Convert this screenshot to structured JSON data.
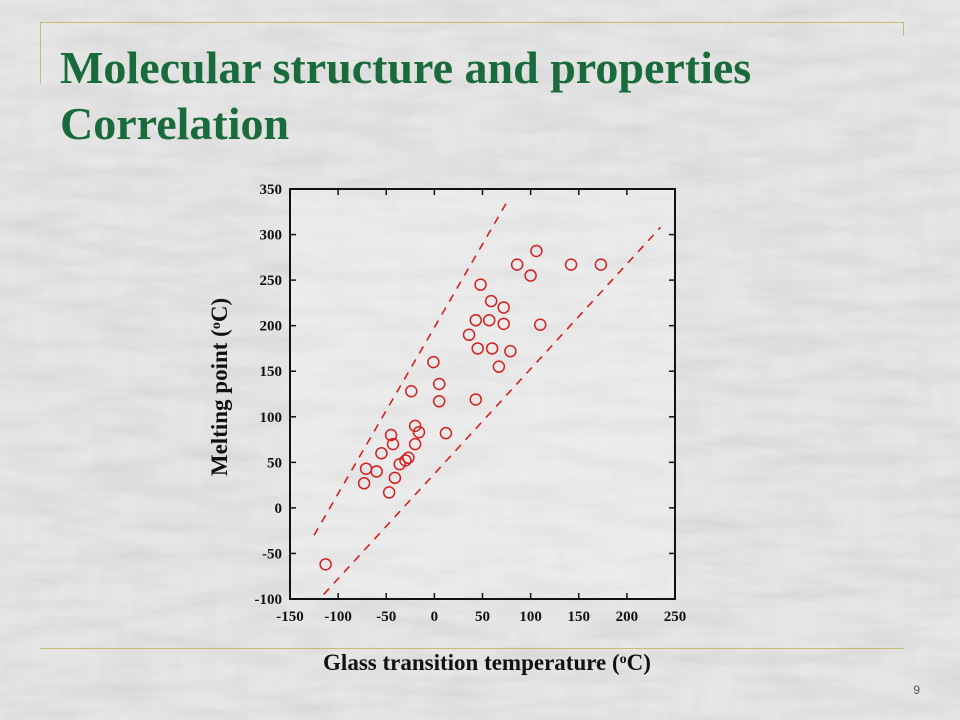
{
  "slide": {
    "title": "Molecular structure and properties Correlation",
    "page_number": "9",
    "colors": {
      "title": "#1a6b3c",
      "frame": "#c8bb7a",
      "markers": "#d42020",
      "guide_lines": "#d42020"
    }
  },
  "chart_data": {
    "type": "scatter",
    "title": "",
    "xlabel": "Glass transition temperature (°C)",
    "ylabel": "Melting point (°C)",
    "xlim": [
      -150,
      250
    ],
    "ylim": [
      -100,
      350
    ],
    "x_ticks": [
      -150,
      -100,
      -50,
      0,
      50,
      100,
      150,
      200,
      250
    ],
    "y_ticks": [
      -100,
      -50,
      0,
      50,
      100,
      150,
      200,
      250,
      300,
      350
    ],
    "grid": false,
    "legend": "none",
    "marker": "open-circle",
    "series": [
      {
        "points": [
          [
            -113,
            -62
          ],
          [
            -73,
            27
          ],
          [
            -71,
            43
          ],
          [
            -60,
            40
          ],
          [
            -55,
            60
          ],
          [
            -47,
            17
          ],
          [
            -45,
            80
          ],
          [
            -43,
            70
          ],
          [
            -41,
            33
          ],
          [
            -36,
            48
          ],
          [
            -30,
            52
          ],
          [
            -27,
            55
          ],
          [
            -24,
            128
          ],
          [
            -20,
            90
          ],
          [
            -20,
            70
          ],
          [
            -16,
            83
          ],
          [
            -1,
            160
          ],
          [
            5,
            136
          ],
          [
            5,
            117
          ],
          [
            12,
            82
          ],
          [
            36,
            190
          ],
          [
            43,
            206
          ],
          [
            43,
            119
          ],
          [
            45,
            175
          ],
          [
            48,
            245
          ],
          [
            57,
            206
          ],
          [
            59,
            227
          ],
          [
            60,
            175
          ],
          [
            67,
            155
          ],
          [
            72,
            220
          ],
          [
            72,
            202
          ],
          [
            79,
            172
          ],
          [
            86,
            267
          ],
          [
            100,
            255
          ],
          [
            106,
            282
          ],
          [
            110,
            201
          ],
          [
            142,
            267
          ],
          [
            173,
            267
          ]
        ]
      }
    ],
    "guide_lines": [
      {
        "style": "dashed",
        "from": [
          -125,
          -30
        ],
        "to": [
          75,
          335
        ]
      },
      {
        "style": "dashed",
        "from": [
          -115,
          -95
        ],
        "to": [
          235,
          308
        ]
      }
    ]
  }
}
